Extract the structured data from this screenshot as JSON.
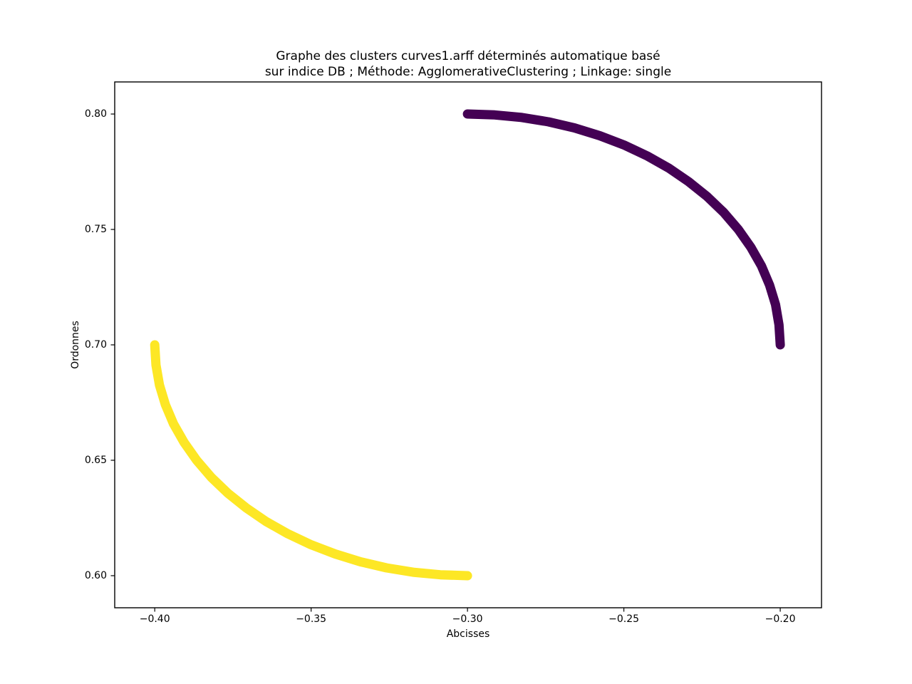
{
  "chart_data": {
    "type": "scatter",
    "title_line1": "Graphe des clusters curves1.arff déterminés automatique basé",
    "title_line2": "sur indice DB ; Méthode: AgglomerativeClustering ; Linkage: single",
    "xlabel": "Abcisses",
    "ylabel": "Ordonnes",
    "xlim": [
      -0.4128,
      -0.1868
    ],
    "ylim": [
      0.5861,
      0.8139
    ],
    "grid": false,
    "legend": null,
    "background_color": "#ffffff",
    "axis_color": "#000000",
    "xticks": [
      {
        "value": -0.4,
        "label": "−0.40"
      },
      {
        "value": -0.35,
        "label": "−0.35"
      },
      {
        "value": -0.3,
        "label": "−0.30"
      },
      {
        "value": -0.25,
        "label": "−0.25"
      },
      {
        "value": -0.2,
        "label": "−0.20"
      }
    ],
    "yticks": [
      {
        "value": 0.6,
        "label": "0.60"
      },
      {
        "value": 0.65,
        "label": "0.65"
      },
      {
        "value": 0.7,
        "label": "0.70"
      },
      {
        "value": 0.75,
        "label": "0.75"
      },
      {
        "value": 0.8,
        "label": "0.80"
      }
    ],
    "stroke_px": 13,
    "series": [
      {
        "name": "cluster_0",
        "color": "#440154",
        "arc": {
          "center": [
            -0.3,
            0.7
          ],
          "radius": 0.1,
          "theta_deg": [
            90,
            0
          ],
          "from": [
            -0.3,
            0.8
          ],
          "to": [
            -0.2,
            0.7
          ]
        },
        "points": [
          [
            -0.3,
            0.8
          ],
          [
            -0.2913,
            0.7996
          ],
          [
            -0.2826,
            0.7985
          ],
          [
            -0.2741,
            0.7966
          ],
          [
            -0.2658,
            0.794
          ],
          [
            -0.2577,
            0.7906
          ],
          [
            -0.25,
            0.7866
          ],
          [
            -0.2426,
            0.7819
          ],
          [
            -0.2357,
            0.7766
          ],
          [
            -0.2293,
            0.7707
          ],
          [
            -0.2234,
            0.7643
          ],
          [
            -0.2181,
            0.7574
          ],
          [
            -0.2134,
            0.75
          ],
          [
            -0.2094,
            0.7423
          ],
          [
            -0.206,
            0.7342
          ],
          [
            -0.2034,
            0.7259
          ],
          [
            -0.2015,
            0.7174
          ],
          [
            -0.2004,
            0.7087
          ],
          [
            -0.2,
            0.7
          ]
        ]
      },
      {
        "name": "cluster_1",
        "color": "#FDE725",
        "arc": {
          "center": [
            -0.3,
            0.7
          ],
          "radius": 0.1,
          "theta_deg": [
            180,
            270
          ],
          "from": [
            -0.4,
            0.7
          ],
          "to": [
            -0.3,
            0.6
          ]
        },
        "points": [
          [
            -0.4,
            0.7
          ],
          [
            -0.3996,
            0.6913
          ],
          [
            -0.3985,
            0.6826
          ],
          [
            -0.3966,
            0.6741
          ],
          [
            -0.394,
            0.6658
          ],
          [
            -0.3906,
            0.6577
          ],
          [
            -0.3866,
            0.65
          ],
          [
            -0.3819,
            0.6426
          ],
          [
            -0.3766,
            0.6357
          ],
          [
            -0.3707,
            0.6293
          ],
          [
            -0.3643,
            0.6234
          ],
          [
            -0.3574,
            0.6181
          ],
          [
            -0.35,
            0.6134
          ],
          [
            -0.3423,
            0.6094
          ],
          [
            -0.3342,
            0.606
          ],
          [
            -0.3259,
            0.6034
          ],
          [
            -0.3174,
            0.6015
          ],
          [
            -0.3087,
            0.6004
          ],
          [
            -0.3,
            0.6
          ]
        ]
      }
    ]
  }
}
